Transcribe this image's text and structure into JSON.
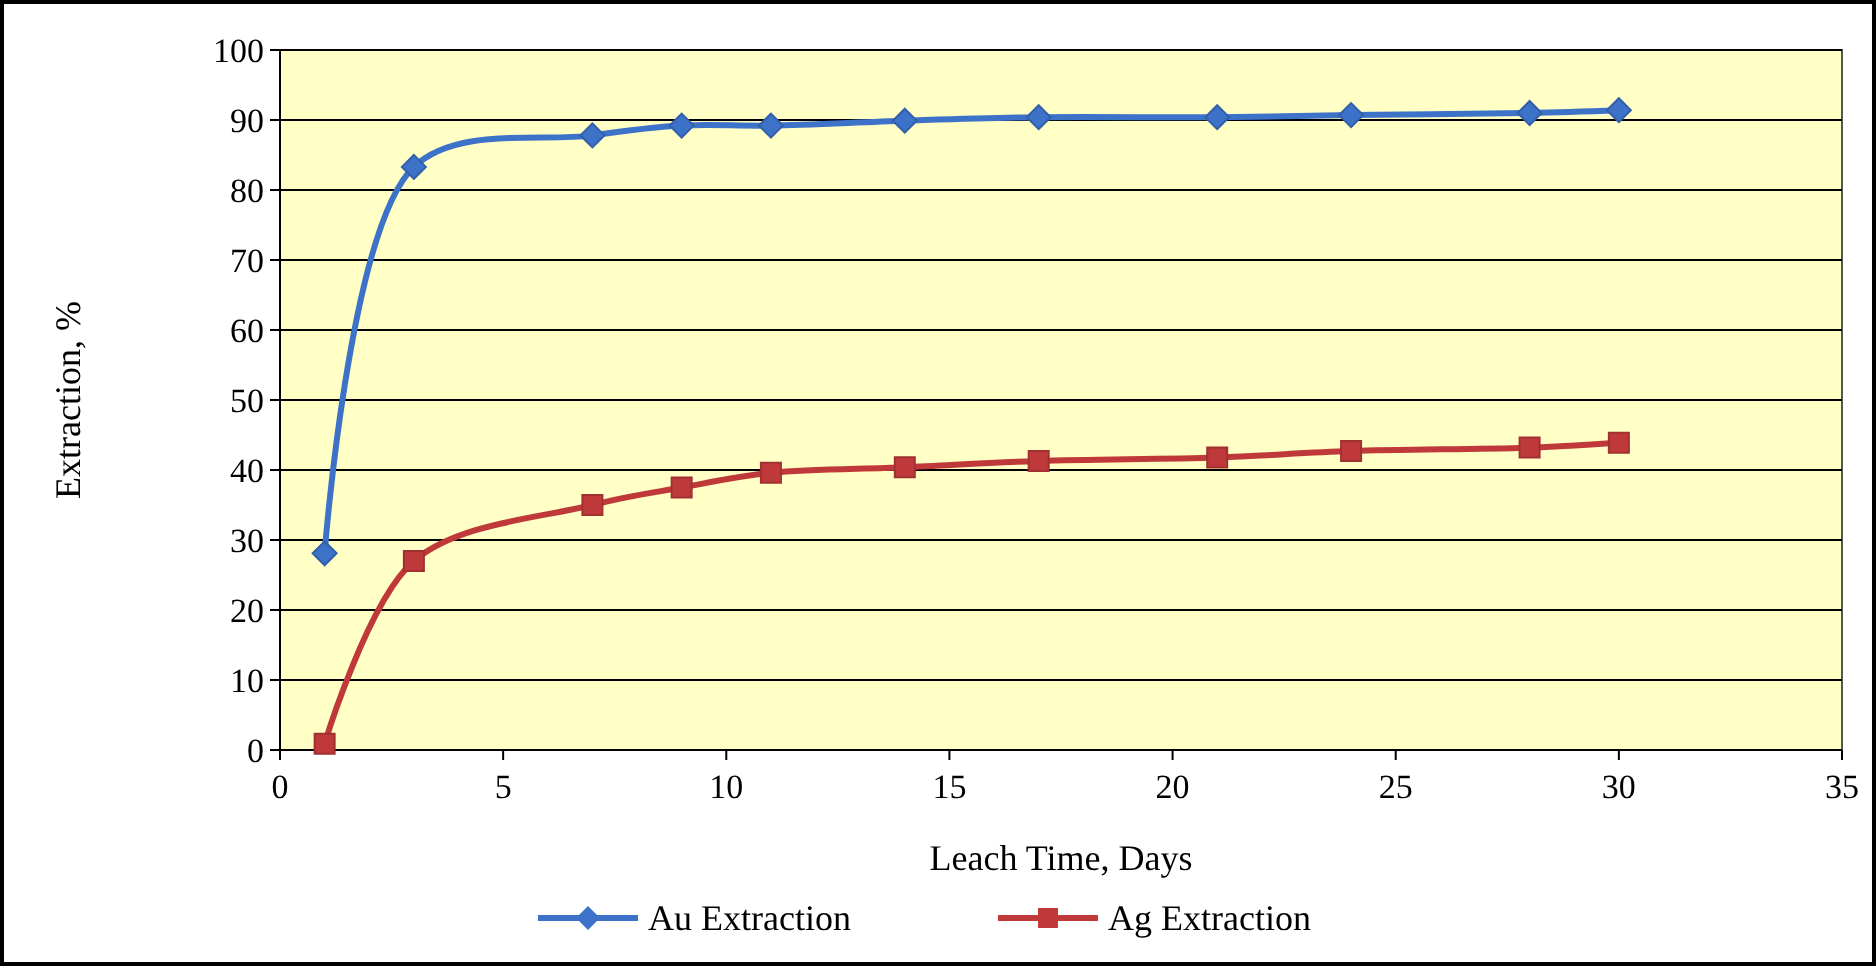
{
  "chart_data": {
    "type": "line",
    "xlabel": "Leach Time, Days",
    "ylabel": "Extraction, %",
    "x": [
      1,
      3,
      7,
      9,
      11,
      14,
      17,
      21,
      24,
      28,
      30
    ],
    "series": [
      {
        "name": "Au Extraction",
        "color": "#3d72c9",
        "marker": "diamond",
        "values": [
          28.1,
          83.3,
          87.8,
          89.2,
          89.2,
          89.9,
          90.4,
          90.4,
          90.7,
          91.0,
          91.4
        ]
      },
      {
        "name": "Ag Extraction",
        "color": "#c0393a",
        "marker": "square",
        "values": [
          0.9,
          27,
          35,
          37.5,
          39.6,
          40.4,
          41.3,
          41.8,
          42.7,
          43.2,
          43.9
        ]
      }
    ],
    "xlim": [
      0,
      35
    ],
    "xticks": [
      0,
      5,
      10,
      15,
      20,
      25,
      30,
      35
    ],
    "ylim": [
      0,
      100
    ],
    "yticks": [
      0,
      10,
      20,
      30,
      40,
      50,
      60,
      70,
      80,
      90,
      100
    ],
    "grid": "y",
    "legend": "bottom",
    "line_style": "solid"
  }
}
